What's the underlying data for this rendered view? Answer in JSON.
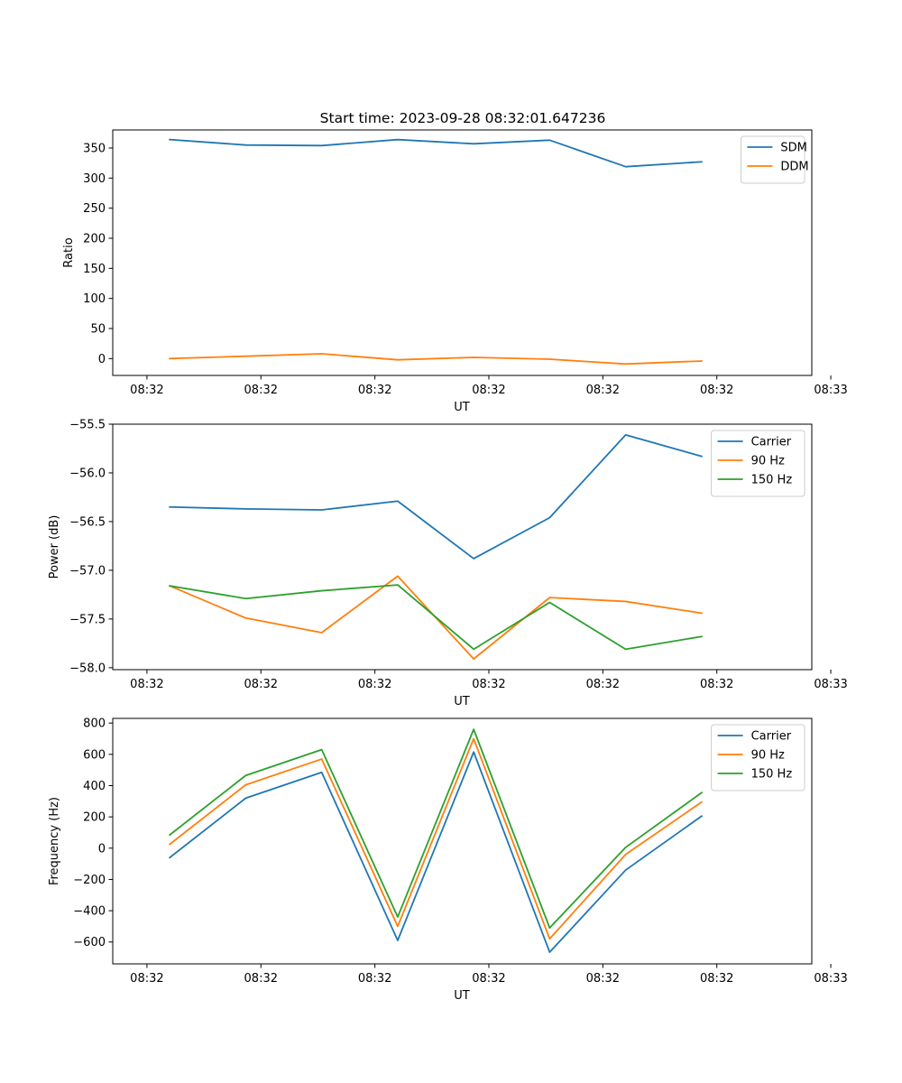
{
  "figure_title": "Start time: 2023-09-28 08:32:01.647236",
  "colors": {
    "blue": "#1f77b4",
    "orange": "#ff7f0e",
    "green": "#2ca02c"
  },
  "chart_data": [
    {
      "type": "line",
      "title": "Start time: 2023-09-28 08:32:01.647236",
      "xlabel": "UT",
      "ylabel": "Ratio",
      "legend_position": "top-right",
      "x": [
        1,
        2,
        3,
        4,
        5,
        6,
        7,
        8
      ],
      "xlim": [
        0.25,
        9.45
      ],
      "x_ticks": [
        0.7,
        2.2,
        3.7,
        5.2,
        6.7,
        8.2,
        9.7
      ],
      "x_tick_labels": [
        "08:32",
        "08:32",
        "08:32",
        "08:32",
        "08:32",
        "08:32",
        "08:33"
      ],
      "ylim": [
        -28,
        380
      ],
      "y_ticks": [
        0,
        50,
        100,
        150,
        200,
        250,
        300,
        350
      ],
      "y_tick_labels": [
        "0",
        "50",
        "100",
        "150",
        "200",
        "250",
        "300",
        "350"
      ],
      "series": [
        {
          "name": "SDM",
          "color": "#1f77b4",
          "values": [
            364,
            355,
            354,
            364,
            357,
            363,
            319,
            327
          ]
        },
        {
          "name": "DDM",
          "color": "#ff7f0e",
          "values": [
            0,
            4,
            8,
            -2,
            2,
            -1,
            -9,
            -4
          ]
        }
      ]
    },
    {
      "type": "line",
      "title": "",
      "xlabel": "UT",
      "ylabel": "Power (dB)",
      "legend_position": "top-right",
      "x": [
        1,
        2,
        3,
        4,
        5,
        6,
        7,
        8
      ],
      "xlim": [
        0.25,
        9.45
      ],
      "x_ticks": [
        0.7,
        2.2,
        3.7,
        5.2,
        6.7,
        8.2,
        9.7
      ],
      "x_tick_labels": [
        "08:32",
        "08:32",
        "08:32",
        "08:32",
        "08:32",
        "08:32",
        "08:33"
      ],
      "ylim": [
        -58.02,
        -55.5
      ],
      "y_ticks": [
        -58.0,
        -57.5,
        -57.0,
        -56.5,
        -56.0,
        -55.5
      ],
      "y_tick_labels": [
        "−58.0",
        "−57.5",
        "−57.0",
        "−56.5",
        "−56.0",
        "−55.5"
      ],
      "series": [
        {
          "name": "Carrier",
          "color": "#1f77b4",
          "values": [
            -56.35,
            -56.37,
            -56.38,
            -56.29,
            -56.88,
            -56.46,
            -55.61,
            -55.83
          ]
        },
        {
          "name": "90 Hz",
          "color": "#ff7f0e",
          "values": [
            -57.16,
            -57.49,
            -57.64,
            -57.06,
            -57.91,
            -57.28,
            -57.32,
            -57.44
          ]
        },
        {
          "name": "150 Hz",
          "color": "#2ca02c",
          "values": [
            -57.16,
            -57.29,
            -57.21,
            -57.15,
            -57.81,
            -57.33,
            -57.81,
            -57.68
          ]
        }
      ]
    },
    {
      "type": "line",
      "title": "",
      "xlabel": "UT",
      "ylabel": "Frequency (Hz)",
      "legend_position": "top-right",
      "x": [
        1,
        2,
        3,
        4,
        5,
        6,
        7,
        8
      ],
      "xlim": [
        0.25,
        9.45
      ],
      "x_ticks": [
        0.7,
        2.2,
        3.7,
        5.2,
        6.7,
        8.2,
        9.7
      ],
      "x_tick_labels": [
        "08:32",
        "08:32",
        "08:32",
        "08:32",
        "08:32",
        "08:32",
        "08:33"
      ],
      "ylim": [
        -740,
        830
      ],
      "y_ticks": [
        -600,
        -400,
        -200,
        0,
        200,
        400,
        600,
        800
      ],
      "y_tick_labels": [
        "−600",
        "−400",
        "−200",
        "0",
        "200",
        "400",
        "600",
        "800"
      ],
      "series": [
        {
          "name": "Carrier",
          "color": "#1f77b4",
          "values": [
            -60,
            320,
            485,
            -590,
            615,
            -665,
            -140,
            205
          ]
        },
        {
          "name": "90 Hz",
          "color": "#ff7f0e",
          "values": [
            25,
            405,
            570,
            -500,
            700,
            -580,
            -40,
            295
          ]
        },
        {
          "name": "150 Hz",
          "color": "#2ca02c",
          "values": [
            85,
            465,
            630,
            -440,
            760,
            -510,
            5,
            355
          ]
        }
      ]
    }
  ]
}
